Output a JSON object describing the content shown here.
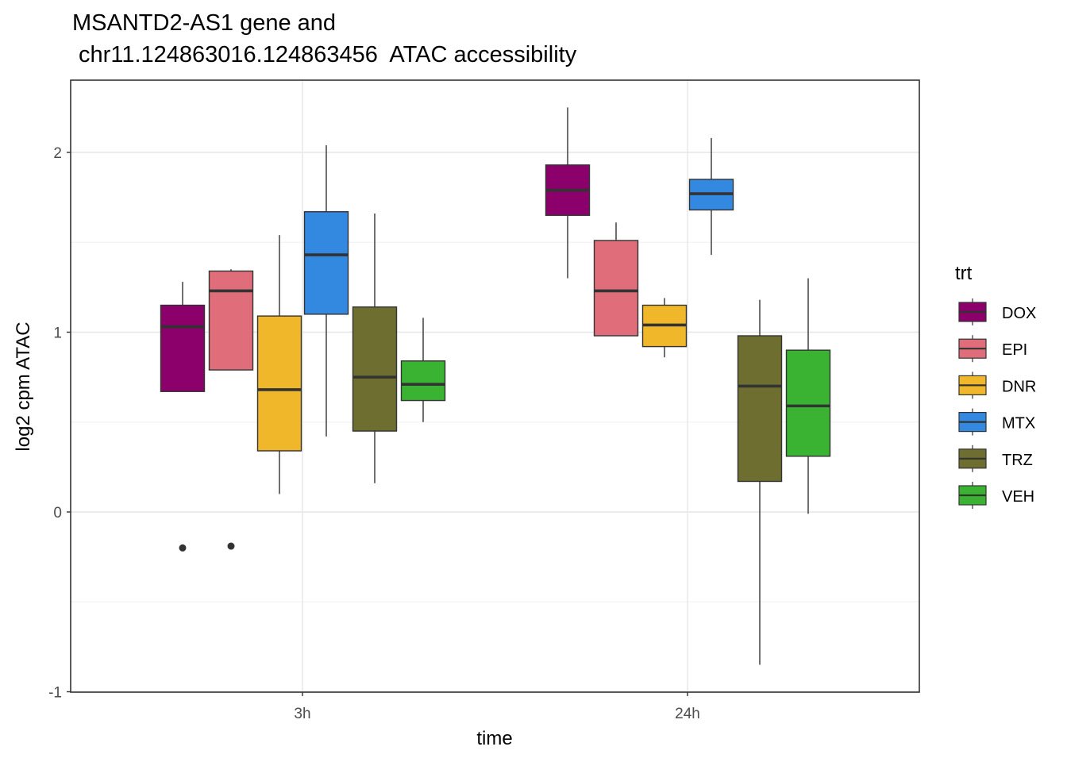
{
  "chart_data": {
    "type": "boxplot",
    "title": [
      "MSANTD2-AS1  gene and",
      " chr11.124863016.124863456  ATAC accessibility"
    ],
    "xlabel": "time",
    "ylabel": "log2 cpm ATAC",
    "categories": [
      "3h",
      "24h"
    ],
    "ylim": [
      -1.0,
      2.35
    ],
    "yticks": [
      -1,
      0,
      1,
      2
    ],
    "ytick_labels": [
      "-1",
      "0",
      "1",
      "2"
    ],
    "grid": true,
    "legend": {
      "title": "trt",
      "position": "right"
    },
    "series": [
      {
        "name": "DOX",
        "color": "#8B006B",
        "boxes": [
          {
            "category": "3h",
            "whisker_low": 0.67,
            "q1": 0.67,
            "median": 1.03,
            "q3": 1.15,
            "whisker_high": 1.28,
            "outliers": [
              -0.2
            ]
          },
          {
            "category": "24h",
            "whisker_low": 1.3,
            "q1": 1.65,
            "median": 1.79,
            "q3": 1.93,
            "whisker_high": 2.25,
            "outliers": []
          }
        ]
      },
      {
        "name": "EPI",
        "color": "#DF6E7A",
        "boxes": [
          {
            "category": "3h",
            "whisker_low": 0.79,
            "q1": 0.79,
            "median": 1.23,
            "q3": 1.34,
            "whisker_high": 1.35,
            "outliers": [
              -0.19
            ]
          },
          {
            "category": "24h",
            "whisker_low": 0.98,
            "q1": 0.98,
            "median": 1.23,
            "q3": 1.51,
            "whisker_high": 1.61,
            "outliers": []
          }
        ]
      },
      {
        "name": "DNR",
        "color": "#F0B72B",
        "boxes": [
          {
            "category": "3h",
            "whisker_low": 0.1,
            "q1": 0.34,
            "median": 0.68,
            "q3": 1.09,
            "whisker_high": 1.54,
            "outliers": []
          },
          {
            "category": "24h",
            "whisker_low": 0.86,
            "q1": 0.92,
            "median": 1.04,
            "q3": 1.15,
            "whisker_high": 1.19,
            "outliers": []
          }
        ]
      },
      {
        "name": "MTX",
        "color": "#3388E0",
        "boxes": [
          {
            "category": "3h",
            "whisker_low": 0.42,
            "q1": 1.1,
            "median": 1.43,
            "q3": 1.67,
            "whisker_high": 2.04,
            "outliers": []
          },
          {
            "category": "24h",
            "whisker_low": 1.43,
            "q1": 1.68,
            "median": 1.77,
            "q3": 1.85,
            "whisker_high": 2.08,
            "outliers": []
          }
        ]
      },
      {
        "name": "TRZ",
        "color": "#6E6E30",
        "boxes": [
          {
            "category": "3h",
            "whisker_low": 0.16,
            "q1": 0.45,
            "median": 0.75,
            "q3": 1.14,
            "whisker_high": 1.66,
            "outliers": []
          },
          {
            "category": "24h",
            "whisker_low": -0.85,
            "q1": 0.17,
            "median": 0.7,
            "q3": 0.98,
            "whisker_high": 1.18,
            "outliers": []
          }
        ]
      },
      {
        "name": "VEH",
        "color": "#3AB232",
        "boxes": [
          {
            "category": "3h",
            "whisker_low": 0.5,
            "q1": 0.62,
            "median": 0.71,
            "q3": 0.84,
            "whisker_high": 1.08,
            "outliers": []
          },
          {
            "category": "24h",
            "whisker_low": -0.01,
            "q1": 0.31,
            "median": 0.59,
            "q3": 0.9,
            "whisker_high": 1.3,
            "outliers": []
          }
        ]
      }
    ]
  }
}
